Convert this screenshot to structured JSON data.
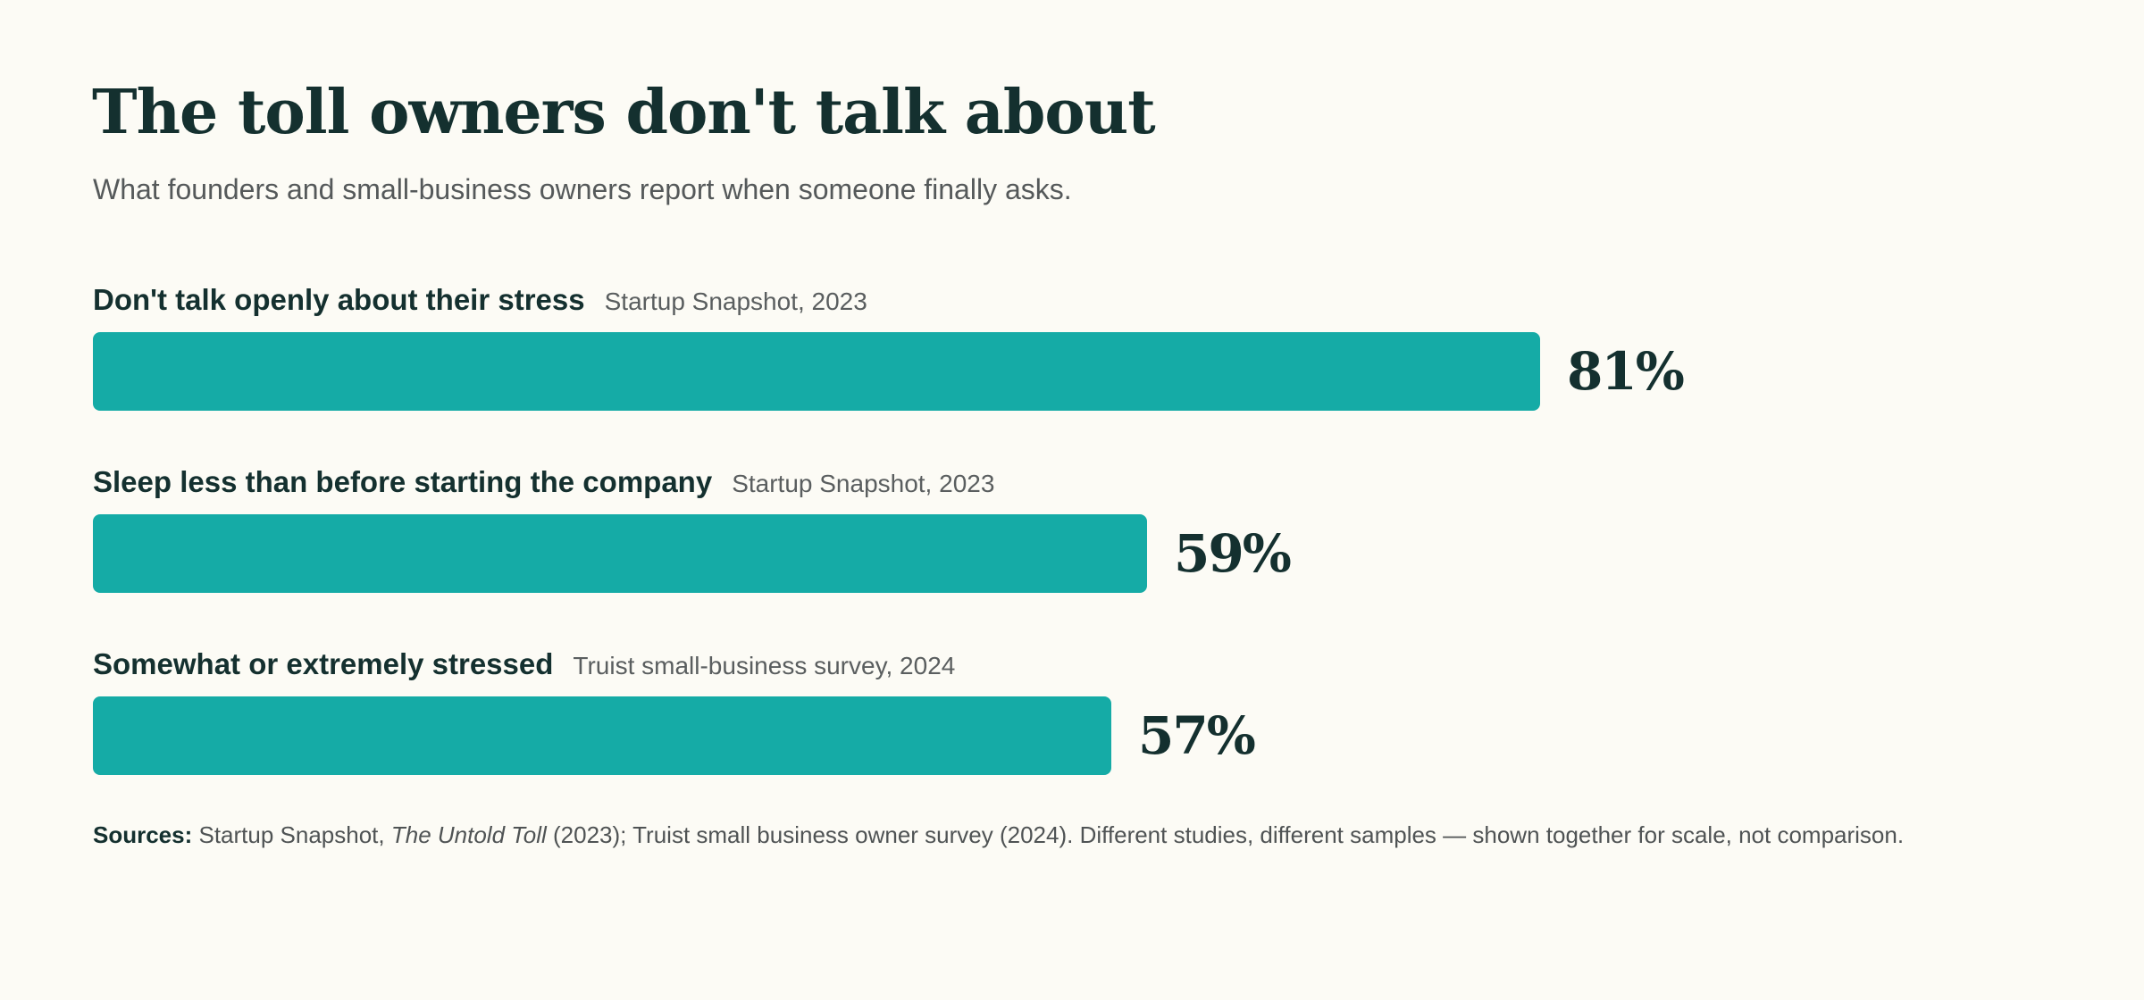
{
  "header": {
    "title": "The toll owners don't talk about",
    "subtitle": "What founders and small-business owners report when someone finally asks."
  },
  "colors": {
    "bar": "#15aba6",
    "ink": "#14302f",
    "muted": "#55595a",
    "background": "#fcfbf5"
  },
  "chart_data": {
    "type": "bar",
    "orientation": "horizontal",
    "title": "The toll owners don't talk about",
    "subtitle": "What founders and small-business owners report when someone finally asks.",
    "xlim": [
      0,
      100
    ],
    "grid": false,
    "categories": [
      "Don't talk openly about their stress",
      "Sleep less than before starting the company",
      "Somewhat or extremely stressed"
    ],
    "sources": [
      "Startup Snapshot, 2023",
      "Startup Snapshot, 2023",
      "Truist small-business survey, 2024"
    ],
    "values": [
      81,
      59,
      57
    ],
    "value_labels": [
      "81%",
      "59%",
      "57%"
    ]
  },
  "footer": {
    "sources_label": "Sources:",
    "sources_pre": " Startup Snapshot, ",
    "sources_italic": "The Untold Toll",
    "sources_post": " (2023); Truist small business owner survey (2024). Different studies, different samples — shown together for scale, not comparison."
  }
}
